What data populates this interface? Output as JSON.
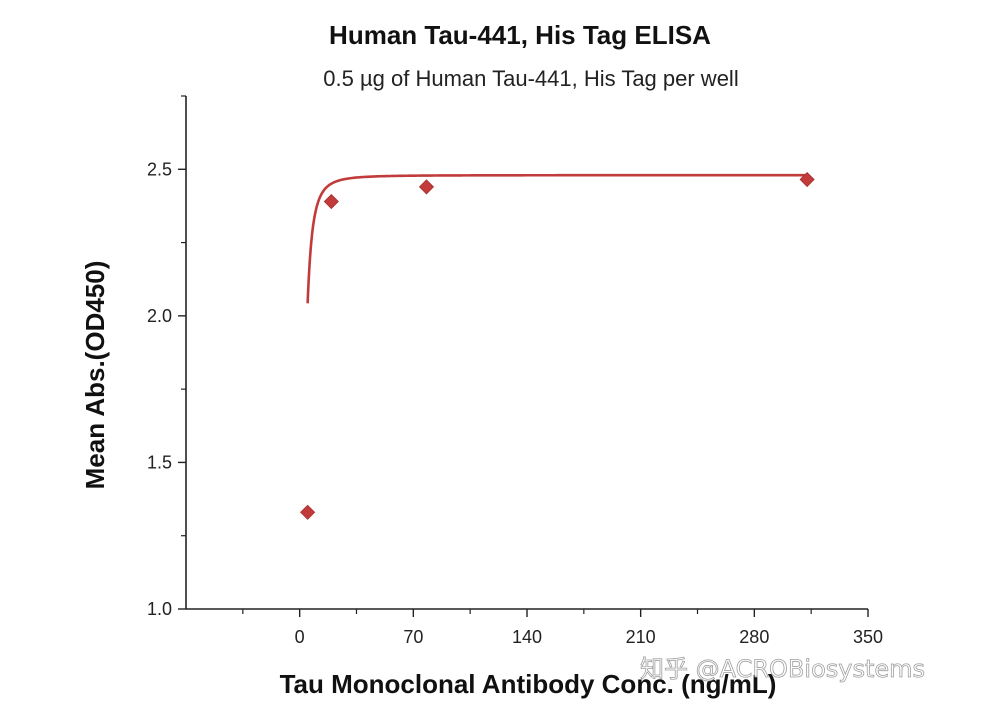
{
  "chart_data": {
    "type": "scatter",
    "title": "Human Tau-441, His Tag ELISA",
    "subtitle": "0.5 µg of Human Tau-441, His Tag per well",
    "xlabel": "Tau Monoclonal Antibody Conc. (ng/mL)",
    "ylabel": "Mean Abs.(OD450)",
    "xlim": [
      -70,
      350
    ],
    "ylim": [
      1.0,
      2.75
    ],
    "xticks": [
      0,
      70,
      140,
      210,
      280,
      350
    ],
    "xtick_labels": [
      "0",
      "70",
      "140",
      "210",
      "280",
      "350"
    ],
    "yticks": [
      1.0,
      1.5,
      2.0,
      2.5
    ],
    "ytick_labels": [
      "1.0",
      "1.5",
      "2.0",
      "2.5"
    ],
    "grid": false,
    "series": [
      {
        "points": [
          {
            "x": 4.9,
            "y": 1.33
          },
          {
            "x": 19.5,
            "y": 2.39
          },
          {
            "x": 78.1,
            "y": 2.44
          },
          {
            "x": 312.5,
            "y": 2.465
          }
        ],
        "fit_curve": true,
        "color": "#c23b3b"
      }
    ]
  },
  "watermark": "知乎 @ACROBiosystems"
}
